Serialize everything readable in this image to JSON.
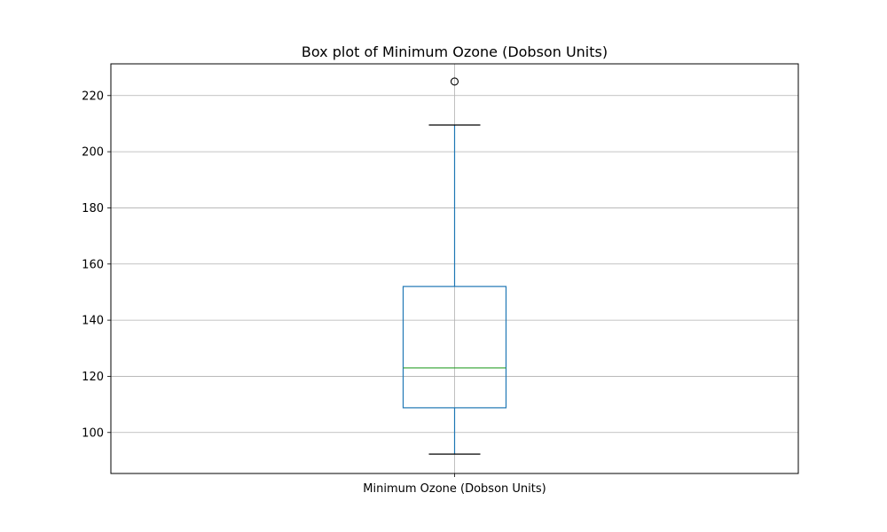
{
  "chart_data": {
    "type": "box",
    "title": "Box plot of Minimum Ozone (Dobson Units)",
    "categories": [
      "Minimum Ozone (Dobson Units)"
    ],
    "series": [
      {
        "whisker_low": 92.3,
        "q1": 108.8,
        "median": 123.0,
        "q3": 152.0,
        "whisker_high": 209.5,
        "outliers": [
          225.0
        ]
      }
    ],
    "ylim": [
      85.4,
      231.3
    ],
    "yticks": [
      100,
      120,
      140,
      160,
      180,
      200,
      220
    ],
    "ytick_labels": [
      "100",
      "120",
      "140",
      "160",
      "180",
      "200",
      "220"
    ],
    "grid": true,
    "colors": {
      "box": "#1f77b4",
      "median": "#2ca02c",
      "caps": "#000000",
      "grid": "#b0b0b0",
      "outlier": "#000000"
    }
  }
}
